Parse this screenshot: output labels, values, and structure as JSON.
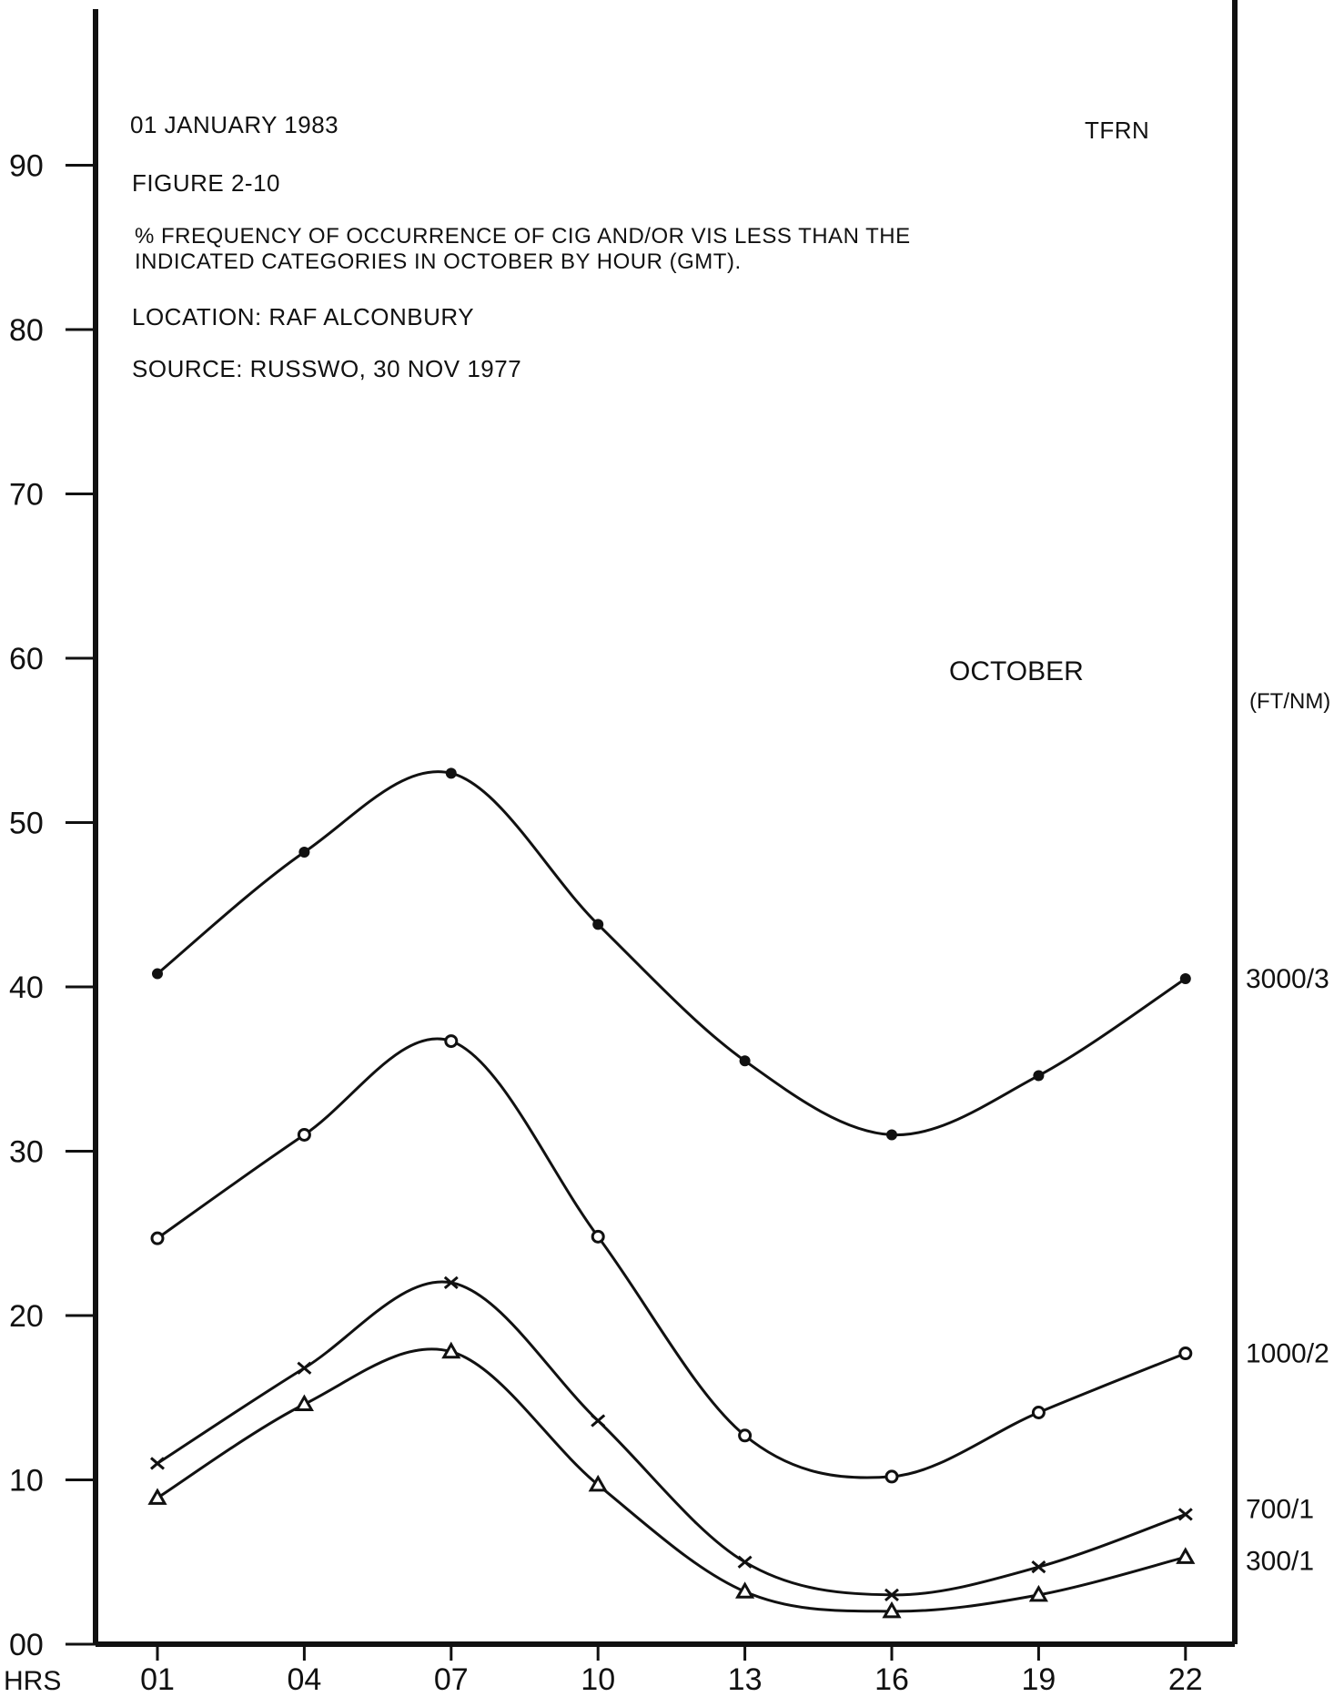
{
  "header": {
    "date": "01 JANUARY 1983",
    "code": "TFRN",
    "figure": "FIGURE 2-10",
    "title_line1": "% FREQUENCY OF OCCURRENCE OF CIG AND/OR VIS LESS THAN THE",
    "title_line2": "INDICATED CATEGORIES IN OCTOBER BY HOUR (GMT).",
    "location": "LOCATION:  RAF ALCONBURY",
    "source": "SOURCE:  RUSSWO, 30 NOV 1977"
  },
  "chart_data": {
    "type": "line",
    "title": "OCTOBER",
    "xlabel": "HRS",
    "right_axis_label": "(FT/NM)",
    "categories": [
      "01",
      "04",
      "07",
      "10",
      "13",
      "16",
      "19",
      "22"
    ],
    "ylim": [
      0,
      100
    ],
    "y_ticks": [
      "00",
      "10",
      "20",
      "30",
      "40",
      "50",
      "60",
      "70",
      "80",
      "90"
    ],
    "grid": false,
    "series": [
      {
        "name": "3000/3",
        "marker": "dot",
        "values": [
          40.8,
          48.2,
          53.0,
          43.8,
          35.5,
          31.0,
          34.6,
          40.5
        ]
      },
      {
        "name": "1000/2",
        "marker": "circle",
        "values": [
          24.7,
          31.0,
          36.7,
          24.8,
          12.7,
          10.2,
          14.1,
          17.7
        ]
      },
      {
        "name": "700/1",
        "marker": "cross",
        "values": [
          11.0,
          16.8,
          22.0,
          13.6,
          5.0,
          3.0,
          4.7,
          7.9
        ]
      },
      {
        "name": "300/1",
        "marker": "triangle",
        "values": [
          8.9,
          14.6,
          17.8,
          9.7,
          3.2,
          2.0,
          3.0,
          5.3
        ]
      }
    ]
  }
}
